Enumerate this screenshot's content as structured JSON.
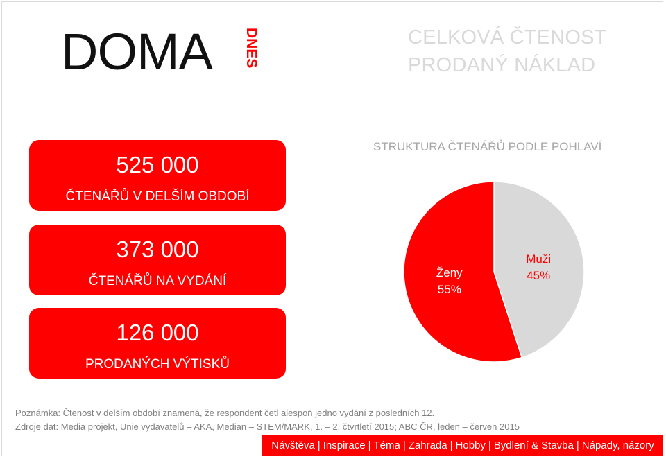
{
  "brand": {
    "logo_text": "DOMA",
    "logo_sub": "DNES"
  },
  "headline": {
    "line1": "CELKOVÁ ČTENOST",
    "line2": "PRODANÝ NÁKLAD"
  },
  "stats": [
    {
      "value": "525 000",
      "label": "ČTENÁŘŮ V DELŠÍM OBDOBÍ"
    },
    {
      "value": "373 000",
      "label": "ČTENÁŘŮ NA VYDÁNÍ"
    },
    {
      "value": "126 000",
      "label": "PRODANÝCH VÝTISKŮ"
    }
  ],
  "chart_data": {
    "type": "pie",
    "title": "STRUKTURA ČTENÁŘŮ PODLE POHLAVÍ",
    "slices": [
      {
        "label": "Muži",
        "value": 45,
        "display": "45%",
        "color": "#d9d9d9"
      },
      {
        "label": "Ženy",
        "value": 55,
        "display": "55%",
        "color": "#ff0000"
      }
    ]
  },
  "notes": {
    "line1": "Poznámka: Čtenost v delším období znamená, že respondent četl alespoň jedno vydání z posledních 12.",
    "line2": "Zdroje dat: Media projekt, Unie vydavatelů – AKA, Median – STEM/MARK, 1. – 2. čtvrtletí 2015; ABC ČR, leden – červen 2015"
  },
  "footer_nav": [
    "Návštěva",
    "Inspirace",
    "Téma",
    "Zahrada",
    "Hobby",
    "Bydlení & Stavba",
    "Nápady, názory"
  ],
  "colors": {
    "accent": "#ff0000",
    "muted": "#d9d9d9",
    "text_gray": "#a6a6a6"
  }
}
